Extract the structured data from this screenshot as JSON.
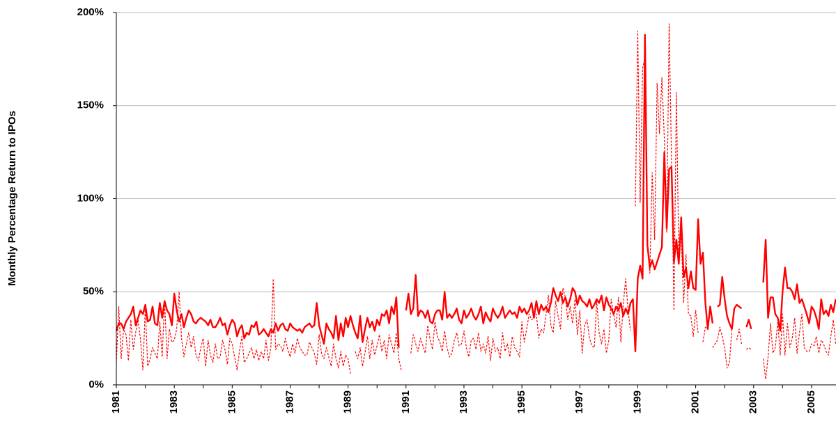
{
  "chart_data": {
    "type": "line",
    "y_label": "Monthly Percentage Return to IPOs",
    "categories": [
      "1981",
      null,
      null,
      null,
      null,
      null,
      null,
      null,
      null,
      null,
      null,
      null,
      null,
      null,
      null,
      null,
      null,
      null,
      null,
      null,
      null,
      null,
      null,
      null,
      "1983",
      null,
      null,
      null,
      null,
      null,
      null,
      null,
      null,
      null,
      null,
      null,
      null,
      null,
      null,
      null,
      null,
      null,
      null,
      null,
      null,
      null,
      null,
      null,
      "1985",
      null,
      null,
      null,
      null,
      null,
      null,
      null,
      null,
      null,
      null,
      null,
      null,
      null,
      null,
      null,
      null,
      null,
      null,
      null,
      null,
      null,
      null,
      null,
      "1987",
      null,
      null,
      null,
      null,
      null,
      null,
      null,
      null,
      null,
      null,
      null,
      null,
      null,
      null,
      null,
      null,
      null,
      null,
      null,
      null,
      null,
      null,
      null,
      "1989",
      null,
      null,
      null,
      null,
      null,
      null,
      null,
      null,
      null,
      null,
      null,
      null,
      null,
      null,
      null,
      null,
      null,
      null,
      null,
      null,
      null,
      null,
      null,
      "1991",
      null,
      null,
      null,
      null,
      null,
      null,
      null,
      null,
      null,
      null,
      null,
      null,
      null,
      null,
      null,
      null,
      null,
      null,
      null,
      null,
      null,
      null,
      null,
      "1993",
      null,
      null,
      null,
      null,
      null,
      null,
      null,
      null,
      null,
      null,
      null,
      null,
      null,
      null,
      null,
      null,
      null,
      null,
      null,
      null,
      null,
      null,
      null,
      "1995",
      null,
      null,
      null,
      null,
      null,
      null,
      null,
      null,
      null,
      null,
      null,
      null,
      null,
      null,
      null,
      null,
      null,
      null,
      null,
      null,
      null,
      null,
      null,
      "1997",
      null,
      null,
      null,
      null,
      null,
      null,
      null,
      null,
      null,
      null,
      null,
      null,
      null,
      null,
      null,
      null,
      null,
      null,
      null,
      null,
      null,
      null,
      null,
      "1999",
      null,
      null,
      null,
      null,
      null,
      null,
      null,
      null,
      null,
      null,
      null,
      null,
      null,
      null,
      null,
      null,
      null,
      null,
      null,
      null,
      null,
      null,
      null,
      "2001",
      null,
      null,
      null,
      null,
      null,
      null,
      null,
      null,
      null,
      null,
      null,
      null,
      null,
      null,
      null,
      null,
      null,
      null,
      null,
      null,
      null,
      null,
      null,
      "2003",
      null,
      null,
      null,
      null,
      null,
      null,
      null,
      null,
      null,
      null,
      null,
      null,
      null,
      null,
      null,
      null,
      null,
      null,
      null,
      null,
      null,
      null,
      null,
      "2005",
      null,
      null,
      null,
      null,
      null,
      null,
      null,
      null,
      null,
      null
    ],
    "series": [
      {
        "color": "#ff0000",
        "line_style": "solid",
        "values": [
          29,
          33,
          33,
          30,
          34,
          36,
          38,
          42,
          32,
          36,
          40,
          38,
          43,
          34,
          35,
          42,
          33,
          32,
          44,
          36,
          45,
          40,
          38,
          32,
          49,
          40,
          34,
          38,
          31,
          36,
          40,
          38,
          34,
          33,
          35,
          36,
          35,
          34,
          32,
          35,
          31,
          31,
          33,
          36,
          32,
          33,
          27,
          32,
          35,
          33,
          26,
          30,
          32,
          25,
          28,
          27,
          32,
          31,
          34,
          27,
          28,
          30,
          28,
          26,
          30,
          28,
          33,
          29,
          32,
          33,
          30,
          29,
          33,
          31,
          30,
          29,
          30,
          28,
          31,
          32,
          33,
          31,
          32,
          44,
          32,
          27,
          22,
          33,
          30,
          28,
          25,
          37,
          24,
          33,
          26,
          36,
          31,
          37,
          32,
          28,
          25,
          37,
          23,
          30,
          36,
          31,
          34,
          29,
          35,
          32,
          38,
          37,
          40,
          33,
          42,
          38,
          47,
          20,
          null,
          null,
          40,
          49,
          38,
          41,
          59,
          37,
          40,
          39,
          36,
          40,
          34,
          33,
          38,
          40,
          40,
          35,
          50,
          36,
          38,
          36,
          38,
          41,
          35,
          33,
          40,
          36,
          38,
          41,
          37,
          35,
          38,
          42,
          33,
          39,
          36,
          34,
          41,
          38,
          36,
          38,
          42,
          36,
          38,
          40,
          38,
          39,
          36,
          42,
          39,
          41,
          38,
          40,
          44,
          36,
          45,
          38,
          43,
          40,
          42,
          39,
          44,
          52,
          48,
          45,
          50,
          44,
          47,
          42,
          46,
          52,
          50,
          43,
          48,
          45,
          44,
          42,
          46,
          41,
          43,
          46,
          44,
          48,
          40,
          47,
          43,
          41,
          38,
          42,
          40,
          44,
          37,
          41,
          38,
          44,
          46,
          18,
          57,
          64,
          57,
          188,
          75,
          63,
          67,
          62,
          66,
          70,
          74,
          125,
          84,
          116,
          117,
          66,
          78,
          65,
          90,
          58,
          63,
          52,
          61,
          52,
          51,
          89,
          65,
          71,
          44,
          30,
          42,
          33,
          null,
          42,
          43,
          58,
          46,
          37,
          33,
          30,
          41,
          43,
          42,
          41,
          null,
          31,
          35,
          30,
          null,
          null,
          null,
          null,
          55,
          78,
          36,
          47,
          47,
          38,
          36,
          29,
          50,
          63,
          52,
          52,
          50,
          46,
          54,
          44,
          46,
          42,
          38,
          33,
          42,
          40,
          36,
          30,
          46,
          38,
          40,
          37,
          43,
          39,
          46
        ]
      },
      {
        "color": "#ff0000",
        "line_style": "dashed",
        "values": [
          12,
          42,
          14,
          30,
          27,
          13,
          35,
          19,
          28,
          35,
          24,
          8,
          42,
          10,
          14,
          20,
          17,
          14,
          34,
          15,
          45,
          14,
          30,
          23,
          24,
          30,
          50,
          25,
          15,
          22,
          28,
          20,
          26,
          16,
          13,
          20,
          25,
          10,
          24,
          16,
          12,
          22,
          14,
          15,
          24,
          19,
          11,
          25,
          22,
          15,
          8,
          18,
          26,
          12,
          14,
          17,
          20,
          14,
          19,
          13,
          18,
          14,
          24,
          13,
          20,
          57,
          19,
          22,
          21,
          18,
          25,
          19,
          15,
          22,
          17,
          25,
          20,
          18,
          16,
          16,
          23,
          20,
          17,
          11,
          27,
          17,
          14,
          20,
          15,
          10,
          22,
          14,
          9,
          18,
          10,
          16,
          14,
          6,
          null,
          18,
          14,
          20,
          10,
          17,
          26,
          14,
          24,
          16,
          21,
          27,
          18,
          24,
          14,
          27,
          22,
          17,
          28,
          14,
          8,
          null,
          null,
          null,
          17,
          27,
          22,
          18,
          25,
          21,
          17,
          32,
          24,
          19,
          34,
          26,
          23,
          18,
          29,
          20,
          15,
          17,
          24,
          28,
          21,
          22,
          29,
          20,
          15,
          24,
          25,
          19,
          28,
          18,
          22,
          17,
          26,
          13,
          25,
          18,
          20,
          14,
          28,
          18,
          22,
          15,
          26,
          20,
          18,
          15,
          34,
          23,
          30,
          38,
          35,
          36,
          38,
          25,
          30,
          28,
          38,
          48,
          32,
          28,
          45,
          37,
          30,
          52,
          47,
          35,
          42,
          33,
          46,
          27,
          40,
          17,
          32,
          35,
          25,
          21,
          20,
          45,
          28,
          22,
          30,
          17,
          24,
          46,
          38,
          31,
          47,
          23,
          43,
          57,
          40,
          29,
          null,
          96,
          190,
          98,
          170,
          176,
          75,
          60,
          114,
          78,
          162,
          135,
          165,
          132,
          82,
          194,
          120,
          40,
          157,
          70,
          80,
          44,
          70,
          38,
          37,
          26,
          40,
          28,
          null,
          23,
          31,
          30,
          null,
          20,
          22,
          24,
          31,
          26,
          20,
          9,
          12,
          30,
          null,
          24,
          30,
          22,
          null,
          19,
          20,
          19,
          null,
          null,
          null,
          null,
          14,
          3,
          15,
          33,
          17,
          20,
          34,
          16,
          38,
          16,
          33,
          20,
          25,
          36,
          17,
          28,
          38,
          20,
          18,
          18,
          22,
          21,
          26,
          17,
          24,
          22,
          18,
          16,
          26,
          35,
          22
        ]
      }
    ],
    "ylim": [
      0,
      200
    ],
    "yticks": [
      {
        "value": 0,
        "label": "0%"
      },
      {
        "value": 50,
        "label": "50%"
      },
      {
        "value": 100,
        "label": "100%"
      },
      {
        "value": 150,
        "label": "150%"
      },
      {
        "value": 200,
        "label": "200%"
      }
    ],
    "grid": true
  }
}
